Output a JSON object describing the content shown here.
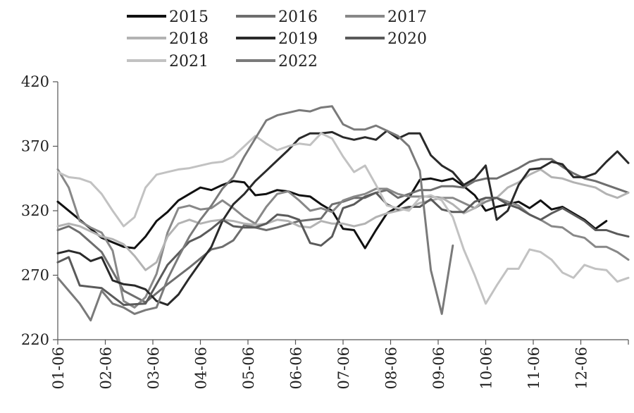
{
  "chart_data": {
    "type": "line",
    "title": "",
    "xlabel": "",
    "ylabel": "",
    "ylim": [
      220,
      420
    ],
    "yticks": [
      220,
      270,
      320,
      370,
      420
    ],
    "x_tick_labels": [
      "01-06",
      "02-06",
      "03-06",
      "04-06",
      "05-06",
      "06-06",
      "07-06",
      "08-06",
      "09-06",
      "10-06",
      "11-06",
      "12-06"
    ],
    "x_domain_weeks": [
      0,
      52
    ],
    "legend_position": "top",
    "grid": false,
    "series": [
      {
        "name": "2015",
        "color": "#111111",
        "x": [
          0,
          2,
          4,
          6,
          7,
          8,
          9,
          10,
          11,
          12,
          13,
          14,
          15,
          16,
          17,
          18,
          19,
          20,
          21,
          22,
          23,
          24,
          25,
          26,
          27,
          28,
          29,
          30,
          31,
          32,
          33,
          34,
          35,
          36,
          37,
          38,
          39,
          40,
          41,
          42,
          43,
          44,
          45,
          46,
          47,
          48,
          49,
          50
        ],
        "y": [
          327,
          313,
          299,
          292,
          291,
          300,
          312,
          319,
          328,
          333,
          338,
          336,
          340,
          343,
          342,
          332,
          333,
          336,
          335,
          332,
          331,
          325,
          320,
          306,
          305,
          291,
          305,
          318,
          323,
          330,
          344,
          345,
          343,
          345,
          339,
          332,
          320,
          323,
          325,
          327,
          322,
          328,
          321,
          323,
          318,
          313,
          306,
          312
        ]
      },
      {
        "name": "2016",
        "color": "#6e6e6e",
        "x": [
          0,
          1,
          2,
          4,
          6,
          8,
          10,
          12,
          13,
          14,
          15,
          16,
          17,
          18,
          19,
          20,
          22,
          24,
          25,
          26,
          27,
          28,
          29,
          30,
          31,
          32,
          33,
          34,
          35,
          36,
          37,
          38,
          39,
          40,
          41,
          42,
          43,
          44,
          45,
          46,
          47,
          48,
          49,
          50,
          51,
          52
        ],
        "y": [
          305,
          308,
          303,
          288,
          258,
          249,
          263,
          276,
          283,
          290,
          292,
          297,
          309,
          307,
          305,
          307,
          312,
          314,
          325,
          327,
          330,
          330,
          334,
          336,
          330,
          333,
          336,
          336,
          339,
          339,
          338,
          343,
          345,
          345,
          349,
          353,
          358,
          360,
          360,
          354,
          349,
          345,
          343,
          340,
          337,
          334
        ]
      },
      {
        "name": "2017",
        "color": "#888888",
        "x": [
          0,
          1,
          2,
          3,
          4,
          5,
          6,
          7,
          8,
          9,
          10,
          11,
          12,
          13,
          14,
          15,
          16,
          17,
          18,
          19,
          20,
          21,
          22,
          23,
          24,
          25,
          26,
          27,
          28,
          29,
          30,
          31,
          32,
          33,
          34,
          35,
          36,
          37,
          38,
          39,
          40,
          41,
          42,
          43,
          44,
          45,
          46,
          47,
          48,
          49,
          50,
          51,
          52
        ],
        "y": [
          352,
          338,
          312,
          307,
          303,
          289,
          250,
          245,
          253,
          271,
          303,
          322,
          324,
          321,
          322,
          328,
          322,
          315,
          310,
          323,
          333,
          335,
          328,
          320,
          322,
          319,
          328,
          331,
          333,
          337,
          337,
          333,
          331,
          331,
          331,
          330,
          330,
          326,
          322,
          327,
          330,
          327,
          324,
          317,
          313,
          308,
          307,
          301,
          299,
          292,
          292,
          288,
          282
        ]
      },
      {
        "name": "2018",
        "color": "#b3b3b3",
        "x": [
          0,
          1,
          2,
          4,
          5,
          6,
          7,
          8,
          9,
          10,
          11,
          12,
          13,
          14,
          15,
          16,
          17,
          18,
          19,
          20,
          21,
          22,
          23,
          24,
          25,
          26,
          27,
          28,
          29,
          30,
          31,
          32,
          33,
          34,
          35,
          36,
          37,
          38,
          39,
          40,
          41,
          42,
          43,
          44,
          45,
          46,
          47,
          48,
          49,
          50,
          51,
          52
        ],
        "y": [
          308,
          310,
          308,
          300,
          298,
          294,
          285,
          274,
          280,
          300,
          310,
          313,
          310,
          312,
          313,
          312,
          310,
          309,
          310,
          313,
          312,
          308,
          307,
          312,
          310,
          310,
          308,
          310,
          315,
          318,
          320,
          322,
          326,
          328,
          330,
          325,
          318,
          322,
          330,
          330,
          338,
          342,
          348,
          352,
          346,
          345,
          342,
          340,
          338,
          333,
          330,
          334
        ]
      },
      {
        "name": "2019",
        "color": "#2a2a2a",
        "x": [
          0,
          1,
          2,
          3,
          4,
          5,
          6,
          7,
          8,
          9,
          10,
          11,
          12,
          13,
          14,
          15,
          16,
          17,
          18,
          19,
          20,
          21,
          22,
          23,
          24,
          25,
          26,
          27,
          28,
          29,
          30,
          31,
          32,
          33,
          34,
          35,
          36,
          37,
          38,
          39,
          40,
          41,
          42,
          43,
          44,
          45,
          46,
          47,
          48,
          49,
          50,
          51,
          52
        ],
        "y": [
          287,
          289,
          287,
          281,
          284,
          266,
          263,
          262,
          259,
          250,
          247,
          255,
          268,
          280,
          292,
          312,
          325,
          333,
          343,
          351,
          359,
          367,
          376,
          380,
          380,
          381,
          377,
          375,
          377,
          375,
          382,
          376,
          380,
          380,
          363,
          355,
          350,
          340,
          345,
          355,
          313,
          320,
          340,
          352,
          353,
          358,
          356,
          346,
          346,
          349,
          358,
          366,
          357
        ]
      },
      {
        "name": "2020",
        "color": "#5a5a5a",
        "x": [
          0,
          1,
          2,
          4,
          6,
          8,
          10,
          12,
          13,
          14,
          15,
          16,
          17,
          18,
          19,
          20,
          21,
          22,
          23,
          24,
          25,
          26,
          27,
          28,
          29,
          30,
          31,
          32,
          33,
          34,
          35,
          36,
          37,
          38,
          39,
          40,
          41,
          42,
          43,
          44,
          45,
          46,
          47,
          48,
          49,
          50,
          51,
          52
        ],
        "y": [
          280,
          284,
          262,
          260,
          247,
          248,
          278,
          296,
          300,
          306,
          313,
          308,
          307,
          307,
          310,
          317,
          316,
          313,
          295,
          293,
          300,
          322,
          325,
          331,
          334,
          325,
          321,
          323,
          323,
          329,
          321,
          319,
          319,
          327,
          330,
          330,
          325,
          322,
          317,
          313,
          318,
          322,
          317,
          312,
          305,
          305,
          302,
          300
        ]
      },
      {
        "name": "2021",
        "color": "#c2c2c2",
        "x": [
          0,
          1,
          2,
          3,
          4,
          5,
          6,
          7,
          8,
          9,
          10,
          11,
          12,
          13,
          14,
          15,
          16,
          17,
          18,
          19,
          20,
          21,
          22,
          23,
          24,
          25,
          26,
          27,
          28,
          29,
          30,
          31,
          32,
          33,
          34,
          35,
          36,
          37,
          38,
          39,
          40,
          41,
          42,
          43,
          44,
          45,
          46,
          47,
          48,
          49,
          50,
          51,
          52
        ],
        "y": [
          350,
          346,
          345,
          342,
          333,
          320,
          308,
          315,
          338,
          348,
          350,
          352,
          353,
          355,
          357,
          358,
          362,
          370,
          378,
          372,
          367,
          370,
          372,
          371,
          380,
          376,
          362,
          350,
          355,
          340,
          324,
          322,
          320,
          330,
          332,
          328,
          315,
          290,
          270,
          248,
          262,
          275,
          275,
          290,
          288,
          282,
          272,
          268,
          278,
          275,
          274,
          265,
          268
        ]
      },
      {
        "name": "2022",
        "color": "#7a7a7a",
        "x": [
          0,
          1,
          2,
          3,
          4,
          5,
          6,
          7,
          8,
          9,
          10,
          11,
          12,
          13,
          14,
          15,
          16,
          17,
          18,
          19,
          20,
          21,
          22,
          23,
          24,
          25,
          26,
          27,
          28,
          29,
          30,
          31,
          32,
          33,
          34,
          35,
          36
        ],
        "y": [
          268,
          258,
          248,
          235,
          258,
          248,
          245,
          240,
          243,
          245,
          267,
          284,
          300,
          313,
          324,
          337,
          346,
          362,
          376,
          390,
          394,
          396,
          398,
          397,
          400,
          401,
          387,
          383,
          383,
          386,
          382,
          378,
          370,
          351,
          274,
          240,
          293
        ]
      }
    ]
  }
}
